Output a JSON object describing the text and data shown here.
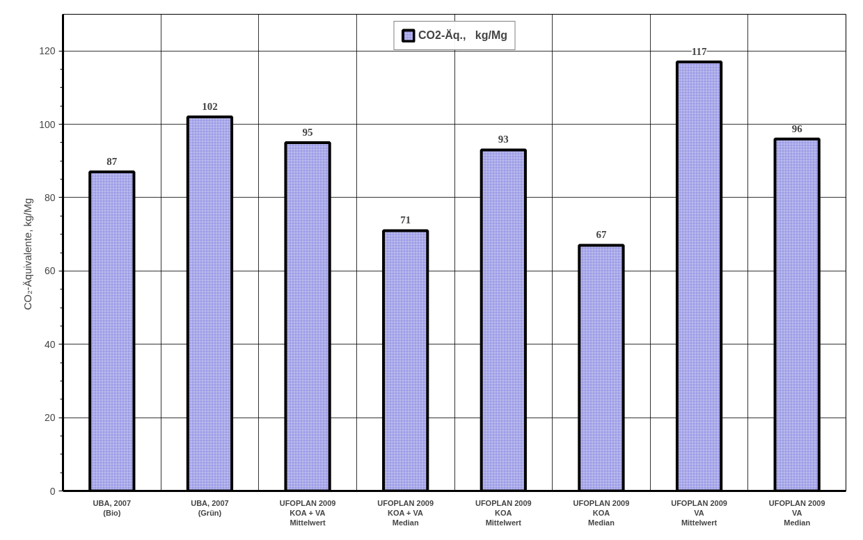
{
  "chart_data": {
    "type": "bar",
    "ylabel": "CO₂-Äquivalente,  kg/Mg",
    "categories": [
      "UBA, 2007\n(Bio)",
      "UBA, 2007\n(Grün)",
      "UFOPLAN 2009\nKOA + VA\nMittelwert",
      "UFOPLAN 2009\nKOA + VA\nMedian",
      "UFOPLAN 2009\nKOA\nMittelwert",
      "UFOPLAN 2009\nKOA\nMedian",
      "UFOPLAN 2009\nVA\nMittelwert",
      "UFOPLAN 2009\nVA\nMedian"
    ],
    "series": [
      {
        "name": "CO2-Äq.,   kg/Mg",
        "color": "#9a9ae6",
        "values": [
          87,
          102,
          95,
          71,
          93,
          67,
          117,
          96
        ]
      }
    ],
    "ylim": [
      0,
      130
    ],
    "yticks": [
      0,
      20,
      40,
      60,
      80,
      100,
      120
    ],
    "grid": true,
    "legend": "top",
    "data_labels": true
  }
}
